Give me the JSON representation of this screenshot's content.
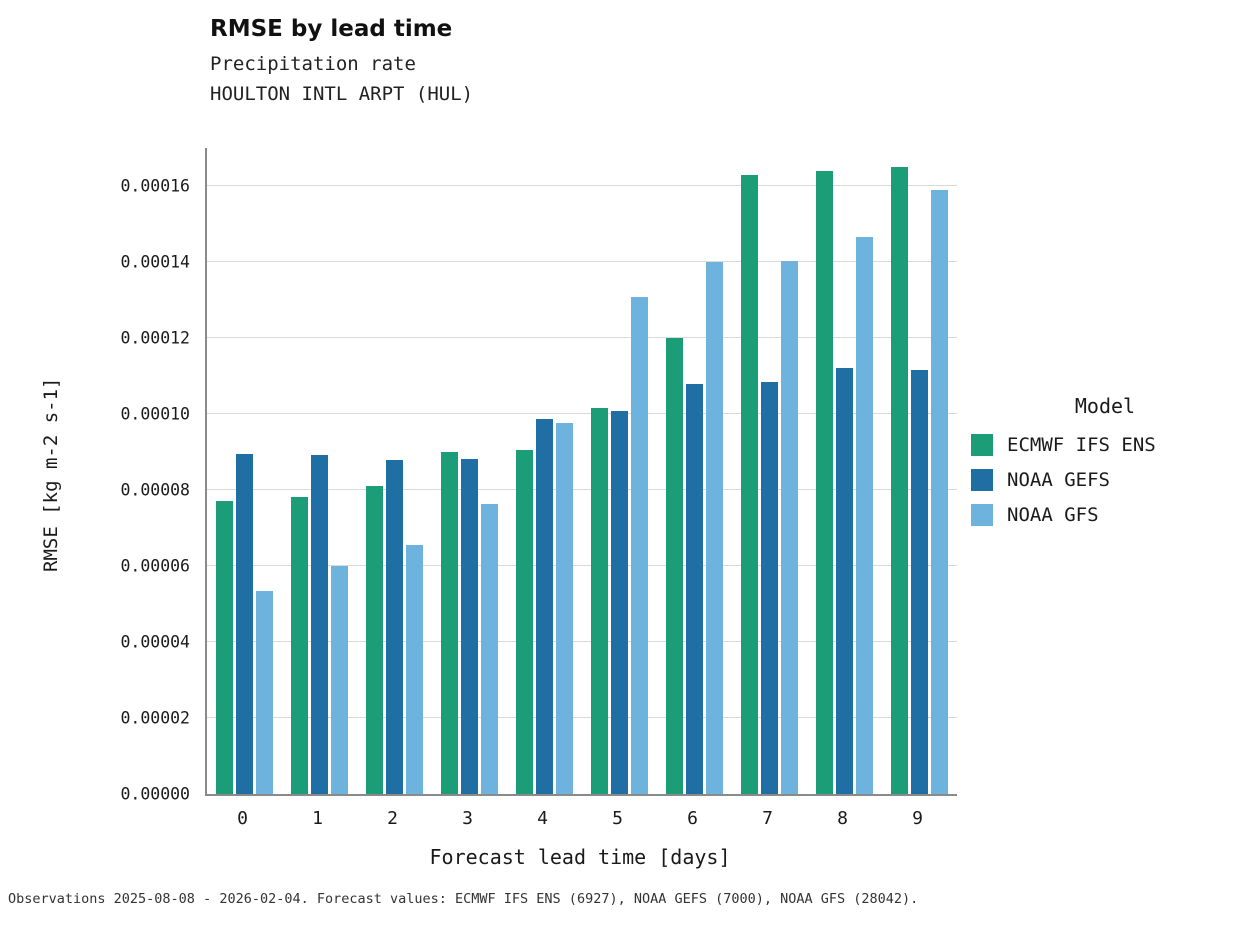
{
  "footer": {
    "text": "Observations 2025-08-08 - 2026-02-04. Forecast values: ECMWF IFS ENS (6927), NOAA GEFS (7000), NOAA GFS (28042)."
  },
  "chart_data": {
    "type": "bar",
    "title": "RMSE by lead time",
    "subtitle": "Precipitation rate",
    "station": "HOULTON INTL ARPT (HUL)",
    "xlabel": "Forecast lead time [days]",
    "ylabel": "RMSE [kg m-2 s-1]",
    "legend_title": "Model",
    "legend_position": "right",
    "grid": "horizontal",
    "background": "#ffffff",
    "ylim": [
      0,
      0.00017
    ],
    "categories": [
      "0",
      "1",
      "2",
      "3",
      "4",
      "5",
      "6",
      "7",
      "8",
      "9"
    ],
    "yticks": [
      {
        "value": 0.0,
        "label": "0.00000"
      },
      {
        "value": 2e-05,
        "label": "0.00002"
      },
      {
        "value": 4e-05,
        "label": "0.00004"
      },
      {
        "value": 6e-05,
        "label": "0.00006"
      },
      {
        "value": 8e-05,
        "label": "0.00008"
      },
      {
        "value": 0.0001,
        "label": "0.00010"
      },
      {
        "value": 0.00012,
        "label": "0.00012"
      },
      {
        "value": 0.00014,
        "label": "0.00014"
      },
      {
        "value": 0.00016,
        "label": "0.00016"
      }
    ],
    "series": [
      {
        "name": "ECMWF IFS ENS",
        "color": "#1b9e77",
        "values": [
          7.7e-05,
          7.82e-05,
          8.1e-05,
          9.01e-05,
          9.05e-05,
          0.0001015,
          0.0001199,
          0.000163,
          0.000164,
          0.000165
        ]
      },
      {
        "name": "NOAA GEFS",
        "color": "#1f6fa5",
        "values": [
          8.95e-05,
          8.93e-05,
          8.8e-05,
          8.82e-05,
          9.88e-05,
          0.0001008,
          0.0001078,
          0.0001085,
          0.000112,
          0.0001117
        ]
      },
      {
        "name": "NOAA GFS",
        "color": "#6db3de",
        "values": [
          5.33e-05,
          6e-05,
          6.55e-05,
          7.63e-05,
          9.77e-05,
          0.0001307,
          0.00014,
          0.0001403,
          0.0001467,
          0.000159
        ]
      }
    ]
  }
}
